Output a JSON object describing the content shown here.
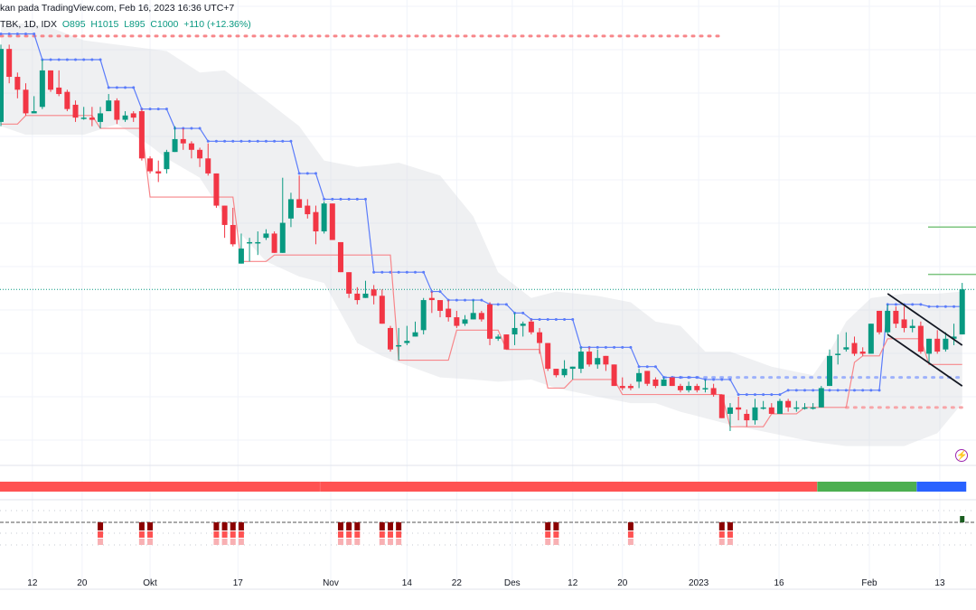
{
  "header": {
    "watermark": "kan pada TradingView.com, Feb 16, 2023 16:36 UTC+7",
    "symbol": "TBK, 1D, IDX",
    "open": "O895",
    "high": "H1015",
    "low": "L895",
    "close": "C1000",
    "change": "+110 (+12.36%)"
  },
  "colors": {
    "up": "#089981",
    "down": "#f23645",
    "upper_line": "#5b7cfa",
    "lower_line": "#f7868a",
    "band": "#eef0f2",
    "target_lines": "#7cc47f",
    "channel": "#131722",
    "strip": [
      "#ff5252",
      "#4caf50",
      "#2962ff"
    ],
    "alert_icon": "#9c27b0"
  },
  "icons": {
    "alert": "lightning-bolt-icon"
  },
  "chart_data": {
    "type": "candlestick",
    "interval": "1D",
    "last_price": 1000,
    "candles_ohlc": [
      [
        1390,
        1570,
        1380,
        1560
      ],
      [
        1560,
        1570,
        1480,
        1495
      ],
      [
        1495,
        1505,
        1445,
        1465
      ],
      [
        1465,
        1480,
        1405,
        1410
      ],
      [
        1410,
        1450,
        1410,
        1415
      ],
      [
        1425,
        1535,
        1420,
        1510
      ],
      [
        1510,
        1510,
        1460,
        1465
      ],
      [
        1470,
        1510,
        1450,
        1455
      ],
      [
        1460,
        1465,
        1415,
        1420
      ],
      [
        1430,
        1440,
        1390,
        1400
      ],
      [
        1400,
        1425,
        1395,
        1400
      ],
      [
        1400,
        1425,
        1380,
        1395
      ],
      [
        1390,
        1425,
        1375,
        1410
      ],
      [
        1415,
        1455,
        1415,
        1440
      ],
      [
        1440,
        1445,
        1385,
        1395
      ],
      [
        1395,
        1415,
        1390,
        1405
      ],
      [
        1410,
        1415,
        1390,
        1400
      ],
      [
        1415,
        1420,
        1300,
        1305
      ],
      [
        1305,
        1310,
        1270,
        1275
      ],
      [
        1275,
        1300,
        1250,
        1270
      ],
      [
        1280,
        1325,
        1270,
        1320
      ],
      [
        1320,
        1380,
        1320,
        1350
      ],
      [
        1350,
        1375,
        1325,
        1340
      ],
      [
        1340,
        1345,
        1305,
        1325
      ],
      [
        1325,
        1330,
        1285,
        1305
      ],
      [
        1305,
        1340,
        1265,
        1270
      ],
      [
        1270,
        1270,
        1190,
        1195
      ],
      [
        1195,
        1195,
        1120,
        1150
      ],
      [
        1150,
        1190,
        1100,
        1105
      ],
      [
        1060,
        1130,
        1060,
        1095
      ],
      [
        1110,
        1120,
        1065,
        1110
      ],
      [
        1110,
        1135,
        1080,
        1110
      ],
      [
        1120,
        1140,
        1115,
        1130
      ],
      [
        1130,
        1135,
        1085,
        1085
      ],
      [
        1085,
        1260,
        1085,
        1155
      ],
      [
        1165,
        1225,
        1145,
        1210
      ],
      [
        1210,
        1265,
        1190,
        1190
      ],
      [
        1195,
        1210,
        1165,
        1175
      ],
      [
        1180,
        1195,
        1105,
        1135
      ],
      [
        1135,
        1205,
        1130,
        1200
      ],
      [
        1200,
        1200,
        1115,
        1115
      ],
      [
        1110,
        1110,
        1040,
        1040
      ],
      [
        1040,
        1040,
        980,
        990
      ],
      [
        990,
        1005,
        965,
        975
      ],
      [
        980,
        1020,
        980,
        990
      ],
      [
        1000,
        1010,
        965,
        985
      ],
      [
        985,
        1000,
        920,
        920
      ],
      [
        910,
        915,
        855,
        860
      ],
      [
        870,
        910,
        835,
        870
      ],
      [
        875,
        915,
        870,
        880
      ],
      [
        890,
        925,
        890,
        900
      ],
      [
        905,
        980,
        895,
        975
      ],
      [
        980,
        995,
        945,
        975
      ],
      [
        975,
        975,
        935,
        950
      ],
      [
        955,
        975,
        925,
        935
      ],
      [
        935,
        950,
        910,
        915
      ],
      [
        920,
        940,
        915,
        930
      ],
      [
        930,
        975,
        930,
        945
      ],
      [
        945,
        950,
        925,
        930
      ],
      [
        965,
        970,
        870,
        885
      ],
      [
        885,
        895,
        880,
        890
      ],
      [
        895,
        895,
        860,
        860
      ],
      [
        895,
        945,
        870,
        910
      ],
      [
        915,
        925,
        890,
        920
      ],
      [
        925,
        930,
        895,
        900
      ],
      [
        900,
        910,
        850,
        875
      ],
      [
        875,
        875,
        810,
        815
      ],
      [
        815,
        815,
        795,
        800
      ],
      [
        800,
        835,
        795,
        815
      ],
      [
        815,
        820,
        790,
        820
      ],
      [
        815,
        865,
        805,
        855
      ],
      [
        855,
        865,
        820,
        825
      ],
      [
        825,
        860,
        815,
        840
      ],
      [
        845,
        845,
        810,
        825
      ],
      [
        825,
        825,
        775,
        775
      ],
      [
        775,
        795,
        765,
        770
      ],
      [
        775,
        780,
        765,
        770
      ],
      [
        785,
        815,
        770,
        805
      ],
      [
        810,
        810,
        775,
        780
      ],
      [
        790,
        795,
        770,
        775
      ],
      [
        775,
        795,
        775,
        790
      ],
      [
        795,
        795,
        775,
        775
      ],
      [
        775,
        780,
        760,
        765
      ],
      [
        765,
        785,
        760,
        775
      ],
      [
        775,
        780,
        760,
        765
      ],
      [
        770,
        790,
        760,
        770
      ],
      [
        770,
        780,
        750,
        755
      ],
      [
        755,
        755,
        700,
        700
      ],
      [
        710,
        735,
        670,
        725
      ],
      [
        725,
        750,
        695,
        720
      ],
      [
        710,
        720,
        680,
        695
      ],
      [
        695,
        745,
        685,
        725
      ],
      [
        725,
        740,
        720,
        725
      ],
      [
        725,
        735,
        710,
        710
      ],
      [
        710,
        745,
        710,
        740
      ],
      [
        740,
        745,
        715,
        725
      ],
      [
        725,
        740,
        715,
        725
      ],
      [
        725,
        735,
        720,
        725
      ],
      [
        725,
        735,
        720,
        725
      ],
      [
        725,
        775,
        725,
        770
      ],
      [
        775,
        860,
        775,
        845
      ],
      [
        850,
        895,
        825,
        850
      ],
      [
        860,
        900,
        855,
        865
      ],
      [
        875,
        890,
        845,
        850
      ],
      [
        855,
        865,
        845,
        850
      ],
      [
        850,
        920,
        850,
        920
      ],
      [
        950,
        950,
        895,
        900
      ],
      [
        900,
        965,
        895,
        950
      ],
      [
        950,
        960,
        910,
        920
      ],
      [
        930,
        960,
        900,
        910
      ],
      [
        910,
        930,
        900,
        915
      ],
      [
        915,
        925,
        850,
        855
      ],
      [
        850,
        885,
        830,
        885
      ],
      [
        885,
        905,
        850,
        855
      ],
      [
        860,
        900,
        855,
        885
      ],
      [
        885,
        920,
        870,
        890
      ],
      [
        895,
        1015,
        895,
        1000
      ]
    ],
    "upper_step_line": [
      [
        0,
        4,
        1595
      ],
      [
        5,
        12,
        1535
      ],
      [
        13,
        16,
        1470
      ],
      [
        17,
        20,
        1420
      ],
      [
        21,
        24,
        1375
      ],
      [
        25,
        35,
        1345
      ],
      [
        36,
        38,
        1270
      ],
      [
        39,
        44,
        1210
      ],
      [
        45,
        51,
        1040
      ],
      [
        52,
        53,
        995
      ],
      [
        54,
        58,
        975
      ],
      [
        59,
        61,
        965
      ],
      [
        62,
        63,
        945
      ],
      [
        64,
        69,
        930
      ],
      [
        70,
        76,
        865
      ],
      [
        77,
        79,
        820
      ],
      [
        80,
        84,
        795
      ],
      [
        85,
        88,
        790
      ],
      [
        89,
        94,
        755
      ],
      [
        95,
        106,
        765
      ],
      [
        107,
        111,
        965
      ],
      [
        112,
        116,
        960
      ]
    ],
    "lower_step_line": [
      [
        0,
        2,
        1385
      ],
      [
        3,
        11,
        1405
      ],
      [
        12,
        17,
        1375
      ],
      [
        18,
        28,
        1215
      ],
      [
        29,
        32,
        1065
      ],
      [
        33,
        47,
        1080
      ],
      [
        48,
        54,
        835
      ],
      [
        55,
        60,
        905
      ],
      [
        61,
        65,
        860
      ],
      [
        66,
        68,
        770
      ],
      [
        69,
        74,
        790
      ],
      [
        75,
        87,
        755
      ],
      [
        88,
        92,
        680
      ],
      [
        93,
        96,
        710
      ],
      [
        97,
        102,
        725
      ],
      [
        103,
        103,
        830
      ],
      [
        104,
        106,
        845
      ],
      [
        107,
        111,
        885
      ],
      [
        112,
        116,
        825
      ]
    ],
    "dotted_levels": [
      {
        "from": 0,
        "to": 87,
        "price": 1590,
        "color": "#f7868a"
      },
      {
        "from": 80,
        "to": 116,
        "price": 795,
        "color": "#9db1fb"
      },
      {
        "from": 102,
        "to": 116,
        "price": 725,
        "color": "#f7a5a8"
      }
    ],
    "band": [
      [
        0,
        1615,
        1380
      ],
      [
        3,
        1620,
        1360
      ],
      [
        6,
        1610,
        1360
      ],
      [
        10,
        1580,
        1360
      ],
      [
        14,
        1570,
        1385
      ],
      [
        18,
        1560,
        1335
      ],
      [
        20,
        1555,
        1305
      ],
      [
        24,
        1505,
        1260
      ],
      [
        27,
        1510,
        1170
      ],
      [
        32,
        1440,
        1065
      ],
      [
        36,
        1380,
        1030
      ],
      [
        39,
        1300,
        1015
      ],
      [
        43,
        1285,
        875
      ],
      [
        46,
        1290,
        845
      ],
      [
        48,
        1295,
        830
      ],
      [
        53,
        1265,
        795
      ],
      [
        57,
        1170,
        790
      ],
      [
        60,
        1040,
        785
      ],
      [
        64,
        980,
        790
      ],
      [
        67,
        995,
        770
      ],
      [
        72,
        985,
        750
      ],
      [
        76,
        970,
        735
      ],
      [
        79,
        925,
        735
      ],
      [
        82,
        915,
        715
      ],
      [
        85,
        855,
        700
      ],
      [
        88,
        855,
        685
      ],
      [
        93,
        820,
        665
      ],
      [
        98,
        800,
        645
      ],
      [
        100,
        855,
        640
      ],
      [
        102,
        925,
        635
      ],
      [
        105,
        980,
        635
      ],
      [
        109,
        990,
        635
      ],
      [
        113,
        990,
        665
      ],
      [
        116,
        995,
        735
      ]
    ],
    "target_levels": [
      1145,
      1035
    ],
    "channel": [
      {
        "from": [
          107,
          990
        ],
        "to": [
          116,
          870
        ]
      },
      {
        "from": [
          107,
          895
        ],
        "to": [
          116,
          775
        ]
      }
    ],
    "x_ticks": [
      {
        "label": "12",
        "index": 3.8
      },
      {
        "label": "20",
        "index": 9.8
      },
      {
        "label": "Okt",
        "index": 18
      },
      {
        "label": "17",
        "index": 28.6
      },
      {
        "label": "Nov",
        "index": 39.8
      },
      {
        "label": "14",
        "index": 49
      },
      {
        "label": "22",
        "index": 55
      },
      {
        "label": "Des",
        "index": 61.7
      },
      {
        "label": "12",
        "index": 69
      },
      {
        "label": "20",
        "index": 75
      },
      {
        "label": "2023",
        "index": 84.2
      },
      {
        "label": "16",
        "index": 93.9
      },
      {
        "label": "Feb",
        "index": 104.8
      },
      {
        "label": "13",
        "index": 113.3
      }
    ],
    "trend_strip": [
      {
        "from": 0,
        "to": 38,
        "state": "bearish",
        "color": "#ff5252"
      },
      {
        "from": 39,
        "to": 98,
        "state": "bearish",
        "color": "#ff5252"
      },
      {
        "from": 99,
        "to": 110,
        "state": "bullish",
        "color": "#4caf50"
      },
      {
        "from": 111,
        "to": 116,
        "state": "neutral",
        "color": "#2962ff"
      }
    ],
    "signal_marks_bearish": [
      12,
      17,
      18,
      26,
      27,
      28,
      29,
      41,
      42,
      43,
      46,
      47,
      48,
      66,
      67,
      76,
      87,
      88
    ],
    "signal_marks_bullish": [
      116
    ]
  }
}
